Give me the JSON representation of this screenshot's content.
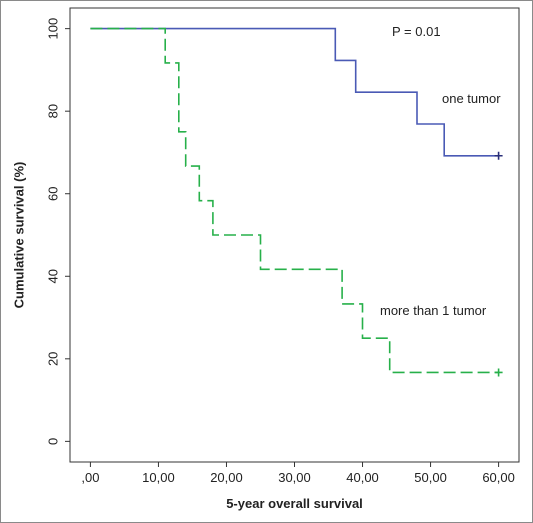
{
  "chart_data": {
    "type": "line",
    "step": true,
    "xlabel": "5-year overall survival",
    "ylabel": "Cumulative survival (%)",
    "xlim": [
      -3,
      63
    ],
    "ylim": [
      -5,
      105
    ],
    "x_ticks": [
      0,
      10,
      20,
      30,
      40,
      50,
      60
    ],
    "x_tick_labels": [
      ",00",
      "10,00",
      "20,00",
      "30,00",
      "40,00",
      "50,00",
      "60,00"
    ],
    "y_ticks": [
      0,
      20,
      40,
      60,
      80,
      100
    ],
    "y_tick_labels": [
      "0",
      "20",
      "40",
      "60",
      "80",
      "100"
    ],
    "grid": false,
    "annotations": [
      {
        "text": "P = 0.01"
      }
    ],
    "series": [
      {
        "name": "one tumor",
        "color": "#4a5ab5",
        "line_style": "solid",
        "points": [
          [
            0,
            100
          ],
          [
            36,
            100
          ],
          [
            36,
            92.3
          ],
          [
            39,
            92.3
          ],
          [
            39,
            84.6
          ],
          [
            48,
            84.6
          ],
          [
            48,
            76.9
          ],
          [
            52,
            76.9
          ],
          [
            52,
            69.2
          ],
          [
            60,
            69.2
          ]
        ],
        "censor": [
          [
            60,
            69.2
          ]
        ]
      },
      {
        "name": "more than 1 tumor",
        "color": "#27b04a",
        "line_style": "dashed",
        "points": [
          [
            0,
            100
          ],
          [
            11,
            100
          ],
          [
            11,
            91.7
          ],
          [
            13,
            91.7
          ],
          [
            13,
            75
          ],
          [
            14,
            75
          ],
          [
            14,
            66.7
          ],
          [
            16,
            66.7
          ],
          [
            16,
            58.3
          ],
          [
            18,
            58.3
          ],
          [
            18,
            50
          ],
          [
            25,
            50
          ],
          [
            25,
            41.7
          ],
          [
            37,
            41.7
          ],
          [
            37,
            33.3
          ],
          [
            40,
            33.3
          ],
          [
            40,
            25
          ],
          [
            44,
            25
          ],
          [
            44,
            16.7
          ],
          [
            60,
            16.7
          ]
        ],
        "censor": [
          [
            60,
            16.7
          ]
        ]
      }
    ]
  }
}
